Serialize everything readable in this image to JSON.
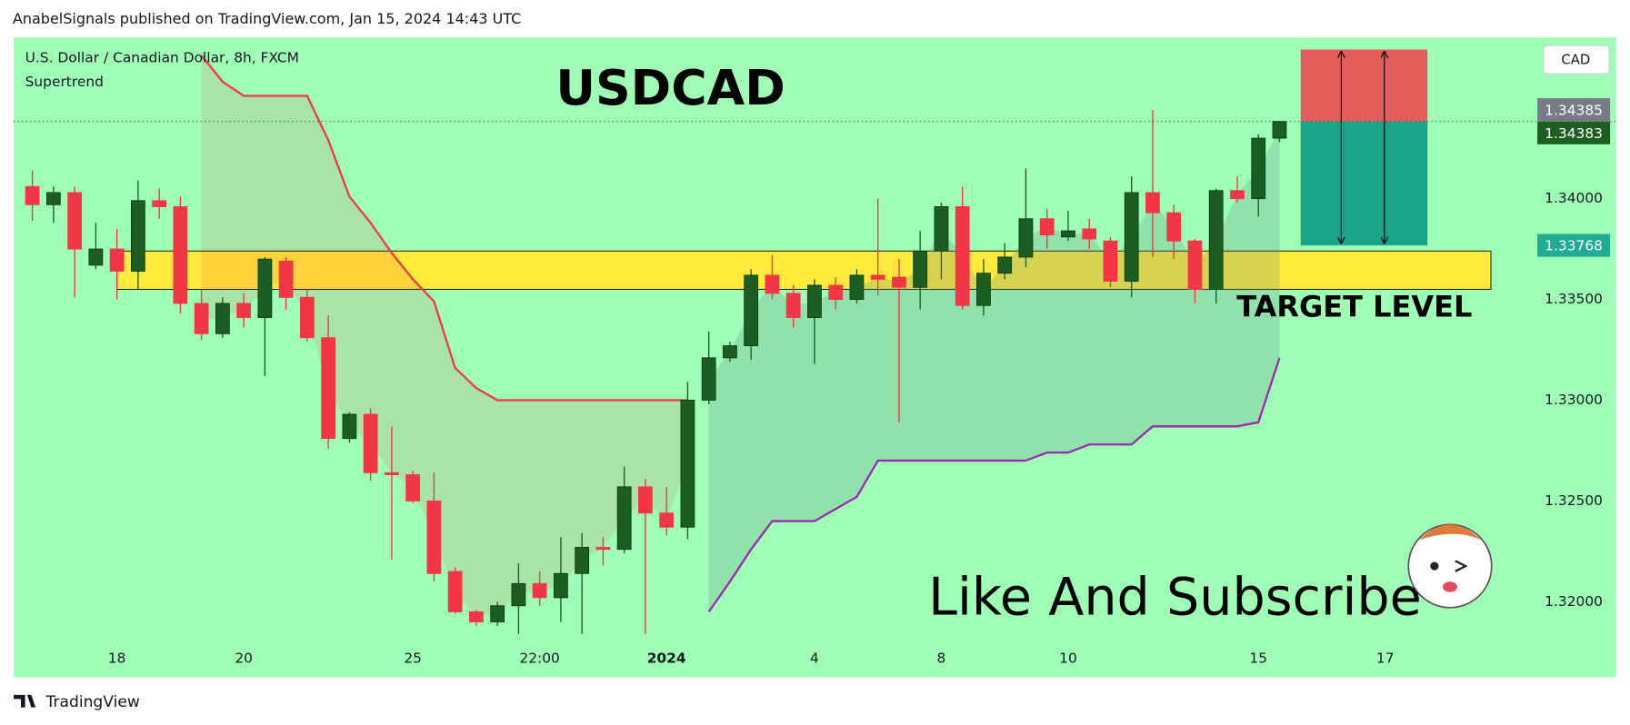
{
  "header": {
    "publisher": "AnabelSignals published on TradingView.com, Jan 15, 2024 14:43 UTC"
  },
  "footer": {
    "brand": "TradingView"
  },
  "chart_data": {
    "type": "candlestick",
    "title": "USDCAD",
    "symbol": "U.S. Dollar / Canadian Dollar, 8h, FXCM",
    "currency": "CAD",
    "annotations": [
      "TARGET LEVEL",
      "Like And Subscribe"
    ],
    "up_color": "#1b5e20",
    "down_color": "#f23645",
    "background": "#9ffeb6",
    "open": [
      1.3406,
      1.3397,
      1.3403,
      1.3367,
      1.3375,
      1.3364,
      1.3399,
      1.3396,
      1.3348,
      1.3333,
      1.3348,
      1.3341,
      1.3369,
      1.3351,
      1.3331,
      1.3281,
      1.3293,
      1.3264,
      1.3263,
      1.325,
      1.3215,
      1.3195,
      1.319,
      1.3198,
      1.3209,
      1.3202,
      1.3214,
      1.3227,
      1.3226,
      1.3257,
      1.3244,
      1.3237,
      1.33,
      1.3321,
      1.3327,
      1.3362,
      1.3353,
      1.3341,
      1.3357,
      1.335,
      1.3362,
      1.3361,
      1.3356,
      1.3374,
      1.3396,
      1.3347,
      1.3363,
      1.3371,
      1.339,
      1.3381,
      1.3385,
      1.3379,
      1.3359,
      1.3403,
      1.3393,
      1.3379,
      1.3355,
      1.3404,
      1.34,
      1.343
    ],
    "high": [
      1.3414,
      1.3406,
      1.3406,
      1.3388,
      1.3385,
      1.3409,
      1.3405,
      1.3401,
      1.3355,
      1.3351,
      1.3353,
      1.3371,
      1.3371,
      1.3355,
      1.3342,
      1.3294,
      1.3296,
      1.3287,
      1.3265,
      1.3264,
      1.3217,
      1.3196,
      1.32,
      1.3219,
      1.3215,
      1.3232,
      1.3234,
      1.3232,
      1.3267,
      1.3261,
      1.3257,
      1.3309,
      1.3334,
      1.3329,
      1.3365,
      1.3372,
      1.3357,
      1.336,
      1.3361,
      1.3365,
      1.34,
      1.337,
      1.3384,
      1.3398,
      1.3406,
      1.337,
      1.3378,
      1.3415,
      1.3395,
      1.3394,
      1.339,
      1.3381,
      1.3411,
      1.3444,
      1.3397,
      1.338,
      1.3405,
      1.3411,
      1.3432,
      1.34385
    ],
    "low": [
      1.3389,
      1.3388,
      1.3351,
      1.3365,
      1.335,
      1.3355,
      1.339,
      1.3343,
      1.333,
      1.3331,
      1.3336,
      1.3312,
      1.3345,
      1.3329,
      1.3276,
      1.3279,
      1.326,
      1.3221,
      1.3249,
      1.321,
      1.3194,
      1.3188,
      1.3188,
      1.3184,
      1.3198,
      1.319,
      1.3184,
      1.3218,
      1.3224,
      1.3184,
      1.3233,
      1.3231,
      1.3298,
      1.3319,
      1.332,
      1.335,
      1.3336,
      1.3318,
      1.3345,
      1.3348,
      1.3352,
      1.3289,
      1.3345,
      1.336,
      1.3345,
      1.3342,
      1.336,
      1.3366,
      1.3375,
      1.3379,
      1.3375,
      1.3356,
      1.3351,
      1.3371,
      1.337,
      1.3348,
      1.3348,
      1.3398,
      1.3391,
      1.3428
    ],
    "close": [
      1.3397,
      1.3403,
      1.3375,
      1.3375,
      1.3364,
      1.3399,
      1.3396,
      1.3348,
      1.3333,
      1.3348,
      1.3341,
      1.337,
      1.3351,
      1.3331,
      1.3281,
      1.3293,
      1.3264,
      1.3263,
      1.325,
      1.3214,
      1.3195,
      1.319,
      1.3198,
      1.3209,
      1.3202,
      1.3214,
      1.3227,
      1.3226,
      1.3257,
      1.3244,
      1.3237,
      1.33,
      1.3321,
      1.3327,
      1.3362,
      1.3353,
      1.3341,
      1.3357,
      1.335,
      1.3362,
      1.336,
      1.3356,
      1.3374,
      1.3396,
      1.3347,
      1.3363,
      1.3371,
      1.339,
      1.3382,
      1.3384,
      1.338,
      1.3359,
      1.3403,
      1.3393,
      1.3379,
      1.3355,
      1.3404,
      1.34,
      1.343,
      1.34383
    ],
    "indicator": {
      "name": "Supertrend",
      "series": [
        {
          "color": "#f23645",
          "fill": "rgba(242,54,69,0.13)",
          "values": [
            null,
            null,
            null,
            null,
            null,
            null,
            null,
            null,
            1.3471,
            1.3458,
            1.3451,
            1.3451,
            1.3451,
            1.3451,
            1.3429,
            1.3401,
            1.3388,
            1.3373,
            1.336,
            1.3349,
            1.3316,
            1.3306,
            1.33,
            1.33,
            1.33,
            1.33,
            1.33,
            1.33,
            1.33,
            1.33,
            1.33,
            1.33,
            null,
            null,
            null,
            null,
            null,
            null,
            null,
            null,
            null,
            null,
            null,
            null,
            null,
            null,
            null,
            null,
            null,
            null,
            null,
            null,
            null,
            null,
            null,
            null,
            null,
            null,
            null,
            null
          ]
        },
        {
          "color": "#9c27b0",
          "fill": "rgba(110,150,140,0.28)",
          "values": [
            null,
            null,
            null,
            null,
            null,
            null,
            null,
            null,
            null,
            null,
            null,
            null,
            null,
            null,
            null,
            null,
            null,
            null,
            null,
            null,
            null,
            null,
            null,
            null,
            null,
            null,
            null,
            null,
            null,
            null,
            null,
            null,
            1.3195,
            1.321,
            1.3226,
            1.324,
            1.324,
            1.324,
            1.3246,
            1.3252,
            1.327,
            1.327,
            1.327,
            1.327,
            1.327,
            1.327,
            1.327,
            1.327,
            1.3274,
            1.3274,
            1.3278,
            1.3278,
            1.3278,
            1.3287,
            1.3287,
            1.3287,
            1.3287,
            1.3287,
            1.3289,
            1.3321
          ]
        }
      ]
    },
    "zone": {
      "top": 1.3374,
      "bottom": 1.3355,
      "from": 4.0,
      "to": 69.0,
      "color": "#ffeb3b"
    },
    "position": {
      "stop": 1.3474,
      "entry": 1.34383,
      "target": 1.33768,
      "from": 60.0,
      "to": 66.0,
      "stop_color": "#e35d5d",
      "target_color": "#18a58a"
    },
    "price_tags": [
      {
        "value": 1.34385,
        "color": "#787b86"
      },
      {
        "value": 1.34383,
        "color": "#1b5e20"
      }
    ],
    "target_tag_color": "#22ab94",
    "xlim": [
      -0.885,
      71.0
    ],
    "xticks": [
      {
        "value": 4,
        "label": "18"
      },
      {
        "value": 10,
        "label": "20"
      },
      {
        "value": 18,
        "label": "25"
      },
      {
        "value": 24,
        "label": "22:00"
      },
      {
        "value": 30,
        "label": "2024"
      },
      {
        "value": 37,
        "label": "4"
      },
      {
        "value": 43,
        "label": "8"
      },
      {
        "value": 49,
        "label": "10"
      },
      {
        "value": 58,
        "label": "15"
      },
      {
        "value": 64,
        "label": "17"
      }
    ],
    "ylim": [
      1.3178,
      1.348
    ],
    "yticks": [
      {
        "value": 1.34,
        "label": "1.34000"
      },
      {
        "value": 1.335,
        "label": "1.33500"
      },
      {
        "value": 1.33,
        "label": "1.33000"
      },
      {
        "value": 1.325,
        "label": "1.32500"
      },
      {
        "value": 1.32,
        "label": "1.32000"
      }
    ]
  }
}
